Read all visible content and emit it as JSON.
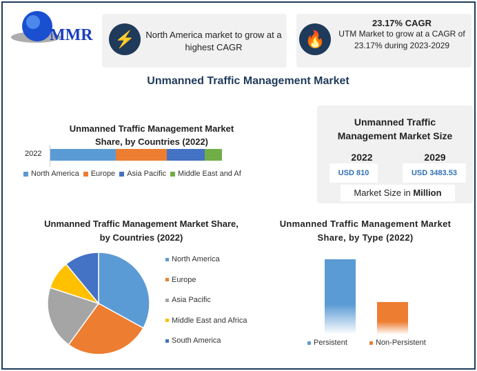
{
  "logo": {
    "text": "MMR"
  },
  "highlights": [
    {
      "icon": "lightning-icon",
      "text": "North America market to grow at a highest CAGR"
    },
    {
      "icon": "flame-icon",
      "title": "23.17% CAGR",
      "text": "UTM Market to grow at a CAGR of 23.17% during 2023-2029"
    }
  ],
  "page_title": "Unmanned Traffic Management Market",
  "market_size": {
    "title": "Unmanned Traffic Management Market Size",
    "years": [
      "2022",
      "2029"
    ],
    "values": [
      "USD 810",
      "USD 3483.53"
    ],
    "unit_prefix": "Market Size in ",
    "unit": "Million"
  },
  "colors": {
    "north_america": "#5b9bd5",
    "europe": "#ed7d31",
    "asia_pacific": "#4472c4",
    "mea": "#70ad47",
    "south_america": "#4472c4",
    "apac_pie": "#a5a5a5",
    "mea_pie": "#ffc000",
    "navy": "#1f3a5a"
  },
  "chart_data": [
    {
      "type": "bar",
      "orientation": "horizontal-stacked",
      "title": "Unmanned Traffic Management Market Share, by Countries (2022)",
      "categories": [
        "2022"
      ],
      "series": [
        {
          "name": "North America",
          "values": [
            38
          ]
        },
        {
          "name": "Europe",
          "values": [
            30
          ]
        },
        {
          "name": "Asia Pacific",
          "values": [
            22
          ]
        },
        {
          "name": "Middle East and Afri",
          "values": [
            10
          ]
        }
      ],
      "legend": "bottom"
    },
    {
      "type": "pie",
      "title": "Unmanned Traffic Management Market Share, by Countries (2022)",
      "labels": [
        "North America",
        "Europe",
        "Asia Pacific",
        "Middle East and Africa",
        "South America"
      ],
      "values": [
        33,
        27,
        20,
        9,
        11
      ],
      "legend": "right"
    },
    {
      "type": "bar",
      "title": "Unmanned Traffic Management Market Share, by Type (2022)",
      "categories": [
        "Persistent",
        "Non-Persistent"
      ],
      "values": [
        70,
        30
      ],
      "legend": "bottom"
    }
  ]
}
